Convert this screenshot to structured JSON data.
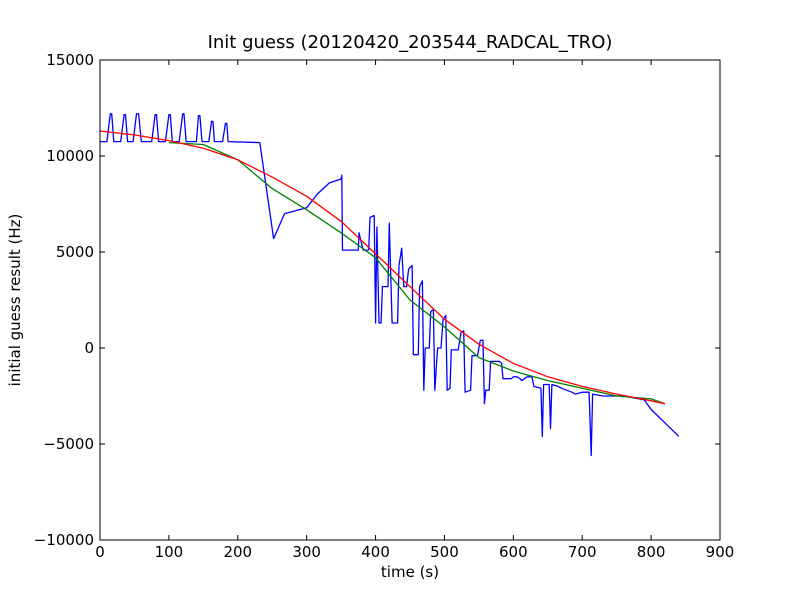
{
  "chart_data": {
    "type": "line",
    "title": "Init guess (20120420_203544_RADCAL_TRO)",
    "xlabel": "time (s)",
    "ylabel": "initial guess result (Hz)",
    "xlim": [
      0,
      900
    ],
    "ylim": [
      -10000,
      15000
    ],
    "xticks": [
      0,
      100,
      200,
      300,
      400,
      500,
      600,
      700,
      800,
      900
    ],
    "yticks": [
      -10000,
      -5000,
      0,
      5000,
      10000,
      15000
    ],
    "x_tick_labels": [
      "0",
      "100",
      "200",
      "300",
      "400",
      "500",
      "600",
      "700",
      "800",
      "900"
    ],
    "y_tick_labels": [
      "−10000",
      "−5000",
      "0",
      "5000",
      "10000",
      "15000"
    ],
    "grid": false,
    "legend": "none",
    "series": [
      {
        "color": "#0000ff",
        "points": [
          [
            0,
            10750
          ],
          [
            10,
            10750
          ],
          [
            15,
            12200
          ],
          [
            17,
            12200
          ],
          [
            20,
            10750
          ],
          [
            30,
            10750
          ],
          [
            35,
            12150
          ],
          [
            37,
            12150
          ],
          [
            40,
            10750
          ],
          [
            48,
            10750
          ],
          [
            53,
            12200
          ],
          [
            56,
            12200
          ],
          [
            60,
            10750
          ],
          [
            75,
            10750
          ],
          [
            80,
            12150
          ],
          [
            82,
            12150
          ],
          [
            85,
            10750
          ],
          [
            95,
            10750
          ],
          [
            100,
            12150
          ],
          [
            102,
            12150
          ],
          [
            105,
            10750
          ],
          [
            115,
            10750
          ],
          [
            120,
            12200
          ],
          [
            122,
            12200
          ],
          [
            125,
            10750
          ],
          [
            140,
            10750
          ],
          [
            143,
            12100
          ],
          [
            145,
            12100
          ],
          [
            148,
            10750
          ],
          [
            158,
            10750
          ],
          [
            162,
            11800
          ],
          [
            164,
            11800
          ],
          [
            166,
            10750
          ],
          [
            178,
            10750
          ],
          [
            182,
            11700
          ],
          [
            184,
            11700
          ],
          [
            186,
            10750
          ],
          [
            232,
            10700
          ],
          [
            252,
            5700
          ],
          [
            268,
            7000
          ],
          [
            300,
            7300
          ],
          [
            315,
            8000
          ],
          [
            333,
            8600
          ],
          [
            350,
            8800
          ],
          [
            351,
            9000
          ],
          [
            352,
            5100
          ],
          [
            375,
            5100
          ],
          [
            376,
            6000
          ],
          [
            382,
            5100
          ],
          [
            390,
            5100
          ],
          [
            392,
            6800
          ],
          [
            398,
            6900
          ],
          [
            400,
            1300
          ],
          [
            402,
            6300
          ],
          [
            405,
            1300
          ],
          [
            408,
            1300
          ],
          [
            410,
            3200
          ],
          [
            418,
            3200
          ],
          [
            420,
            6500
          ],
          [
            424,
            1300
          ],
          [
            432,
            1300
          ],
          [
            434,
            4300
          ],
          [
            438,
            5200
          ],
          [
            441,
            3200
          ],
          [
            445,
            3200
          ],
          [
            448,
            4100
          ],
          [
            453,
            4300
          ],
          [
            455,
            -350
          ],
          [
            462,
            -350
          ],
          [
            464,
            3200
          ],
          [
            468,
            3500
          ],
          [
            470,
            -2200
          ],
          [
            472,
            0
          ],
          [
            478,
            0
          ],
          [
            480,
            1900
          ],
          [
            484,
            2000
          ],
          [
            486,
            -2200
          ],
          [
            490,
            0
          ],
          [
            495,
            0
          ],
          [
            498,
            1500
          ],
          [
            502,
            1700
          ],
          [
            504,
            -2200
          ],
          [
            508,
            -2100
          ],
          [
            510,
            -100
          ],
          [
            520,
            -100
          ],
          [
            524,
            800
          ],
          [
            528,
            900
          ],
          [
            530,
            -2300
          ],
          [
            538,
            -2200
          ],
          [
            540,
            -400
          ],
          [
            548,
            -400
          ],
          [
            552,
            400
          ],
          [
            556,
            400
          ],
          [
            558,
            -2900
          ],
          [
            560,
            -2200
          ],
          [
            565,
            -2200
          ],
          [
            567,
            -700
          ],
          [
            580,
            -700
          ],
          [
            583,
            -800
          ],
          [
            585,
            -1600
          ],
          [
            597,
            -1600
          ],
          [
            600,
            -1500
          ],
          [
            605,
            -1500
          ],
          [
            610,
            -1600
          ],
          [
            612,
            -1700
          ],
          [
            616,
            -1600
          ],
          [
            620,
            -1500
          ],
          [
            627,
            -1500
          ],
          [
            630,
            -2000
          ],
          [
            640,
            -2100
          ],
          [
            642,
            -4600
          ],
          [
            644,
            -1900
          ],
          [
            652,
            -1900
          ],
          [
            654,
            -4200
          ],
          [
            656,
            -1900
          ],
          [
            665,
            -2000
          ],
          [
            670,
            -2100
          ],
          [
            685,
            -2300
          ],
          [
            690,
            -2400
          ],
          [
            700,
            -2300
          ],
          [
            710,
            -2300
          ],
          [
            713,
            -5600
          ],
          [
            715,
            -2400
          ],
          [
            730,
            -2500
          ],
          [
            745,
            -2500
          ],
          [
            760,
            -2500
          ],
          [
            775,
            -2600
          ],
          [
            790,
            -2700
          ],
          [
            800,
            -3200
          ],
          [
            840,
            -4600
          ]
        ]
      },
      {
        "color": "#008000",
        "points": [
          [
            100,
            10700
          ],
          [
            150,
            10600
          ],
          [
            200,
            9800
          ],
          [
            250,
            8300
          ],
          [
            300,
            7200
          ],
          [
            350,
            6000
          ],
          [
            400,
            4700
          ],
          [
            450,
            2500
          ],
          [
            500,
            1100
          ],
          [
            550,
            -500
          ],
          [
            600,
            -1200
          ],
          [
            650,
            -1700
          ],
          [
            700,
            -2100
          ],
          [
            750,
            -2500
          ],
          [
            800,
            -2650
          ],
          [
            820,
            -2900
          ]
        ]
      },
      {
        "color": "#ff0000",
        "points": [
          [
            0,
            11300
          ],
          [
            50,
            11100
          ],
          [
            100,
            10800
          ],
          [
            150,
            10400
          ],
          [
            200,
            9800
          ],
          [
            250,
            8900
          ],
          [
            300,
            7900
          ],
          [
            350,
            6600
          ],
          [
            400,
            4900
          ],
          [
            450,
            3200
          ],
          [
            500,
            1500
          ],
          [
            550,
            200
          ],
          [
            600,
            -800
          ],
          [
            650,
            -1500
          ],
          [
            700,
            -2000
          ],
          [
            750,
            -2400
          ],
          [
            800,
            -2750
          ],
          [
            820,
            -2900
          ]
        ]
      }
    ]
  }
}
